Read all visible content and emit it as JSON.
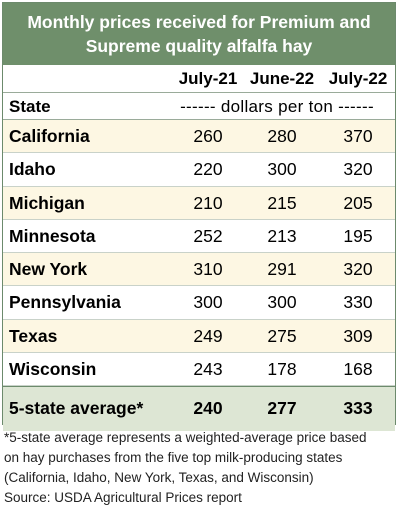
{
  "title_lines": [
    "Monthly prices received for Premium and",
    "Supreme quality alfalfa hay"
  ],
  "state_header": "State",
  "unit_label": "------ dollars per ton ------",
  "chart_data": {
    "type": "table",
    "columns": [
      "July-21",
      "June-22",
      "July-22"
    ],
    "rows": [
      {
        "state": "California",
        "values": [
          "260",
          "280",
          "370"
        ]
      },
      {
        "state": "Idaho",
        "values": [
          "220",
          "300",
          "320"
        ]
      },
      {
        "state": "Michigan",
        "values": [
          "210",
          "215",
          "205"
        ]
      },
      {
        "state": "Minnesota",
        "values": [
          "252",
          "213",
          "195"
        ]
      },
      {
        "state": "New York",
        "values": [
          "310",
          "291",
          "320"
        ]
      },
      {
        "state": "Pennsylvania",
        "values": [
          "300",
          "300",
          "330"
        ]
      },
      {
        "state": "Texas",
        "values": [
          "249",
          "275",
          "309"
        ]
      },
      {
        "state": "Wisconsin",
        "values": [
          "243",
          "178",
          "168"
        ]
      }
    ],
    "average": {
      "label": "5-state average*",
      "values": [
        "240",
        "277",
        "333"
      ]
    }
  },
  "footnote_lines": [
    "*5-state average represents  a weighted-average price based",
    "on hay purchases from the five top milk-producing states",
    "(California, Idaho, New York, Texas, and Wisconsin)",
    "Source: USDA Agricultural Prices report"
  ],
  "colors": {
    "header_bg": "#6f8f6b",
    "band_bg": "#fdf7e3",
    "average_bg": "#dde6d4"
  }
}
